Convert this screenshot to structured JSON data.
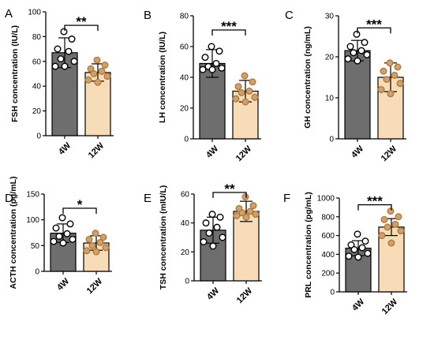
{
  "chart_data": [
    {
      "type": "bar",
      "panel": "A",
      "ylabel": "FSH concentration (IU/L)",
      "categories": [
        "4W",
        "12W"
      ],
      "ylim": [
        0,
        100
      ],
      "yticks": [
        0,
        20,
        40,
        60,
        80,
        100
      ],
      "series": [
        {
          "values": [
            67,
            51
          ],
          "errors": [
            12,
            7
          ]
        }
      ],
      "points": [
        [
          84,
          78,
          70,
          68,
          62,
          60,
          56,
          56
        ],
        [
          61,
          57,
          54,
          52,
          50,
          48,
          45,
          43
        ]
      ],
      "significance": "**",
      "colors": [
        "#6e6e6e",
        "#f8dcb8"
      ]
    },
    {
      "type": "bar",
      "panel": "B",
      "ylabel": "LH concentration (IU/L)",
      "categories": [
        "4W",
        "12W"
      ],
      "ylim": [
        0,
        80
      ],
      "yticks": [
        0,
        20,
        40,
        60,
        80
      ],
      "series": [
        {
          "values": [
            49,
            31
          ],
          "errors": [
            9,
            7
          ]
        }
      ],
      "points": [
        [
          60,
          57,
          53,
          49,
          47,
          46,
          45,
          45
        ],
        [
          41,
          37,
          34,
          31,
          30,
          27,
          26,
          24
        ]
      ],
      "significance": "***",
      "colors": [
        "#6e6e6e",
        "#f8dcb8"
      ]
    },
    {
      "type": "bar",
      "panel": "C",
      "ylabel": "GH concentration (ng/mL)",
      "categories": [
        "4W",
        "12W"
      ],
      "ylim": [
        0,
        30
      ],
      "yticks": [
        0,
        10,
        20,
        30
      ],
      "series": [
        {
          "values": [
            21.5,
            15
          ],
          "errors": [
            2.5,
            3.5
          ]
        }
      ],
      "points": [
        [
          25.5,
          23.5,
          22.5,
          21.5,
          21,
          20.5,
          19.5,
          19
        ],
        [
          18.5,
          17.5,
          16.5,
          15.5,
          14.5,
          13.5,
          12,
          11
        ]
      ],
      "significance": "***",
      "colors": [
        "#6e6e6e",
        "#f8dcb8"
      ]
    },
    {
      "type": "bar",
      "panel": "D",
      "ylabel": "ACTH concentration (pg/mL)",
      "categories": [
        "4W",
        "12W"
      ],
      "ylim": [
        0,
        150
      ],
      "yticks": [
        0,
        50,
        100,
        150
      ],
      "series": [
        {
          "values": [
            74,
            55
          ],
          "errors": [
            18,
            14
          ]
        }
      ],
      "points": [
        [
          104,
          92,
          84,
          73,
          68,
          62,
          58,
          55
        ],
        [
          74,
          66,
          62,
          56,
          50,
          46,
          40,
          38
        ]
      ],
      "significance": "*",
      "colors": [
        "#6e6e6e",
        "#f8dcb8"
      ]
    },
    {
      "type": "bar",
      "panel": "E",
      "ylabel": "TSH concentration (mIU/L)",
      "categories": [
        "4W",
        "12W"
      ],
      "ylim": [
        0,
        60
      ],
      "yticks": [
        0,
        20,
        40,
        60
      ],
      "series": [
        {
          "values": [
            35,
            48
          ],
          "errors": [
            9,
            7
          ]
        }
      ],
      "points": [
        [
          46,
          44,
          40,
          37,
          33,
          30,
          27,
          24
        ],
        [
          58,
          52,
          50,
          48,
          47,
          46,
          45,
          44
        ]
      ],
      "significance": "**",
      "colors": [
        "#6e6e6e",
        "#f8dcb8"
      ]
    },
    {
      "type": "bar",
      "panel": "F",
      "ylabel": "PRL concentration (pg/mL)",
      "categories": [
        "4W",
        "12W"
      ],
      "ylim": [
        0,
        1000
      ],
      "yticks": [
        0,
        200,
        400,
        600,
        800,
        1000
      ],
      "series": [
        {
          "values": [
            465,
            690
          ],
          "errors": [
            80,
            90
          ]
        }
      ],
      "points": [
        [
          615,
          540,
          500,
          470,
          450,
          410,
          380,
          370
        ],
        [
          860,
          800,
          770,
          720,
          690,
          650,
          600,
          520
        ]
      ],
      "significance": "***",
      "colors": [
        "#6e6e6e",
        "#f8dcb8"
      ]
    }
  ]
}
